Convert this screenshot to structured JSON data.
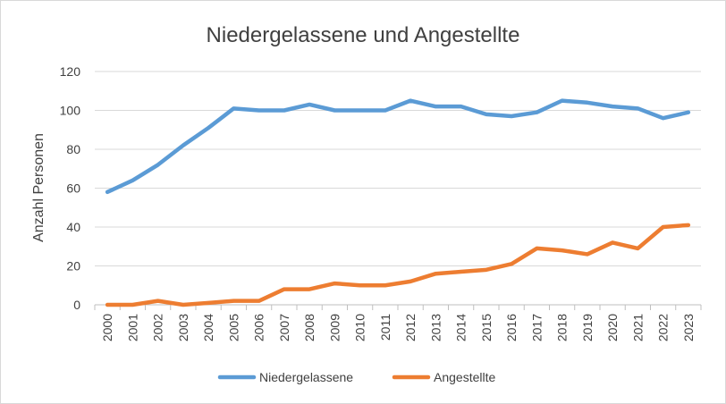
{
  "chart_data": {
    "type": "line",
    "title": "Niedergelassene und Angestellte",
    "xlabel": "",
    "ylabel": "Anzahl Personen",
    "ylim": [
      0,
      120
    ],
    "yticks": [
      0,
      20,
      40,
      60,
      80,
      100,
      120
    ],
    "grid": true,
    "legend_position": "bottom",
    "categories": [
      "2000",
      "2001",
      "2002",
      "2003",
      "2004",
      "2005",
      "2006",
      "2007",
      "2008",
      "2009",
      "2010",
      "2011",
      "2012",
      "2013",
      "2014",
      "2015",
      "2016",
      "2017",
      "2018",
      "2019",
      "2020",
      "2021",
      "2022",
      "2023"
    ],
    "series": [
      {
        "name": "Niedergelassene",
        "color": "#5b9bd5",
        "values": [
          58,
          64,
          72,
          82,
          91,
          101,
          100,
          100,
          103,
          100,
          100,
          100,
          105,
          102,
          102,
          98,
          97,
          99,
          105,
          104,
          102,
          101,
          96,
          99
        ]
      },
      {
        "name": "Angestellte",
        "color": "#ed7d31",
        "values": [
          0,
          0,
          2,
          0,
          1,
          2,
          2,
          8,
          8,
          11,
          10,
          10,
          12,
          16,
          17,
          18,
          21,
          29,
          28,
          26,
          32,
          29,
          40,
          41
        ]
      }
    ]
  }
}
